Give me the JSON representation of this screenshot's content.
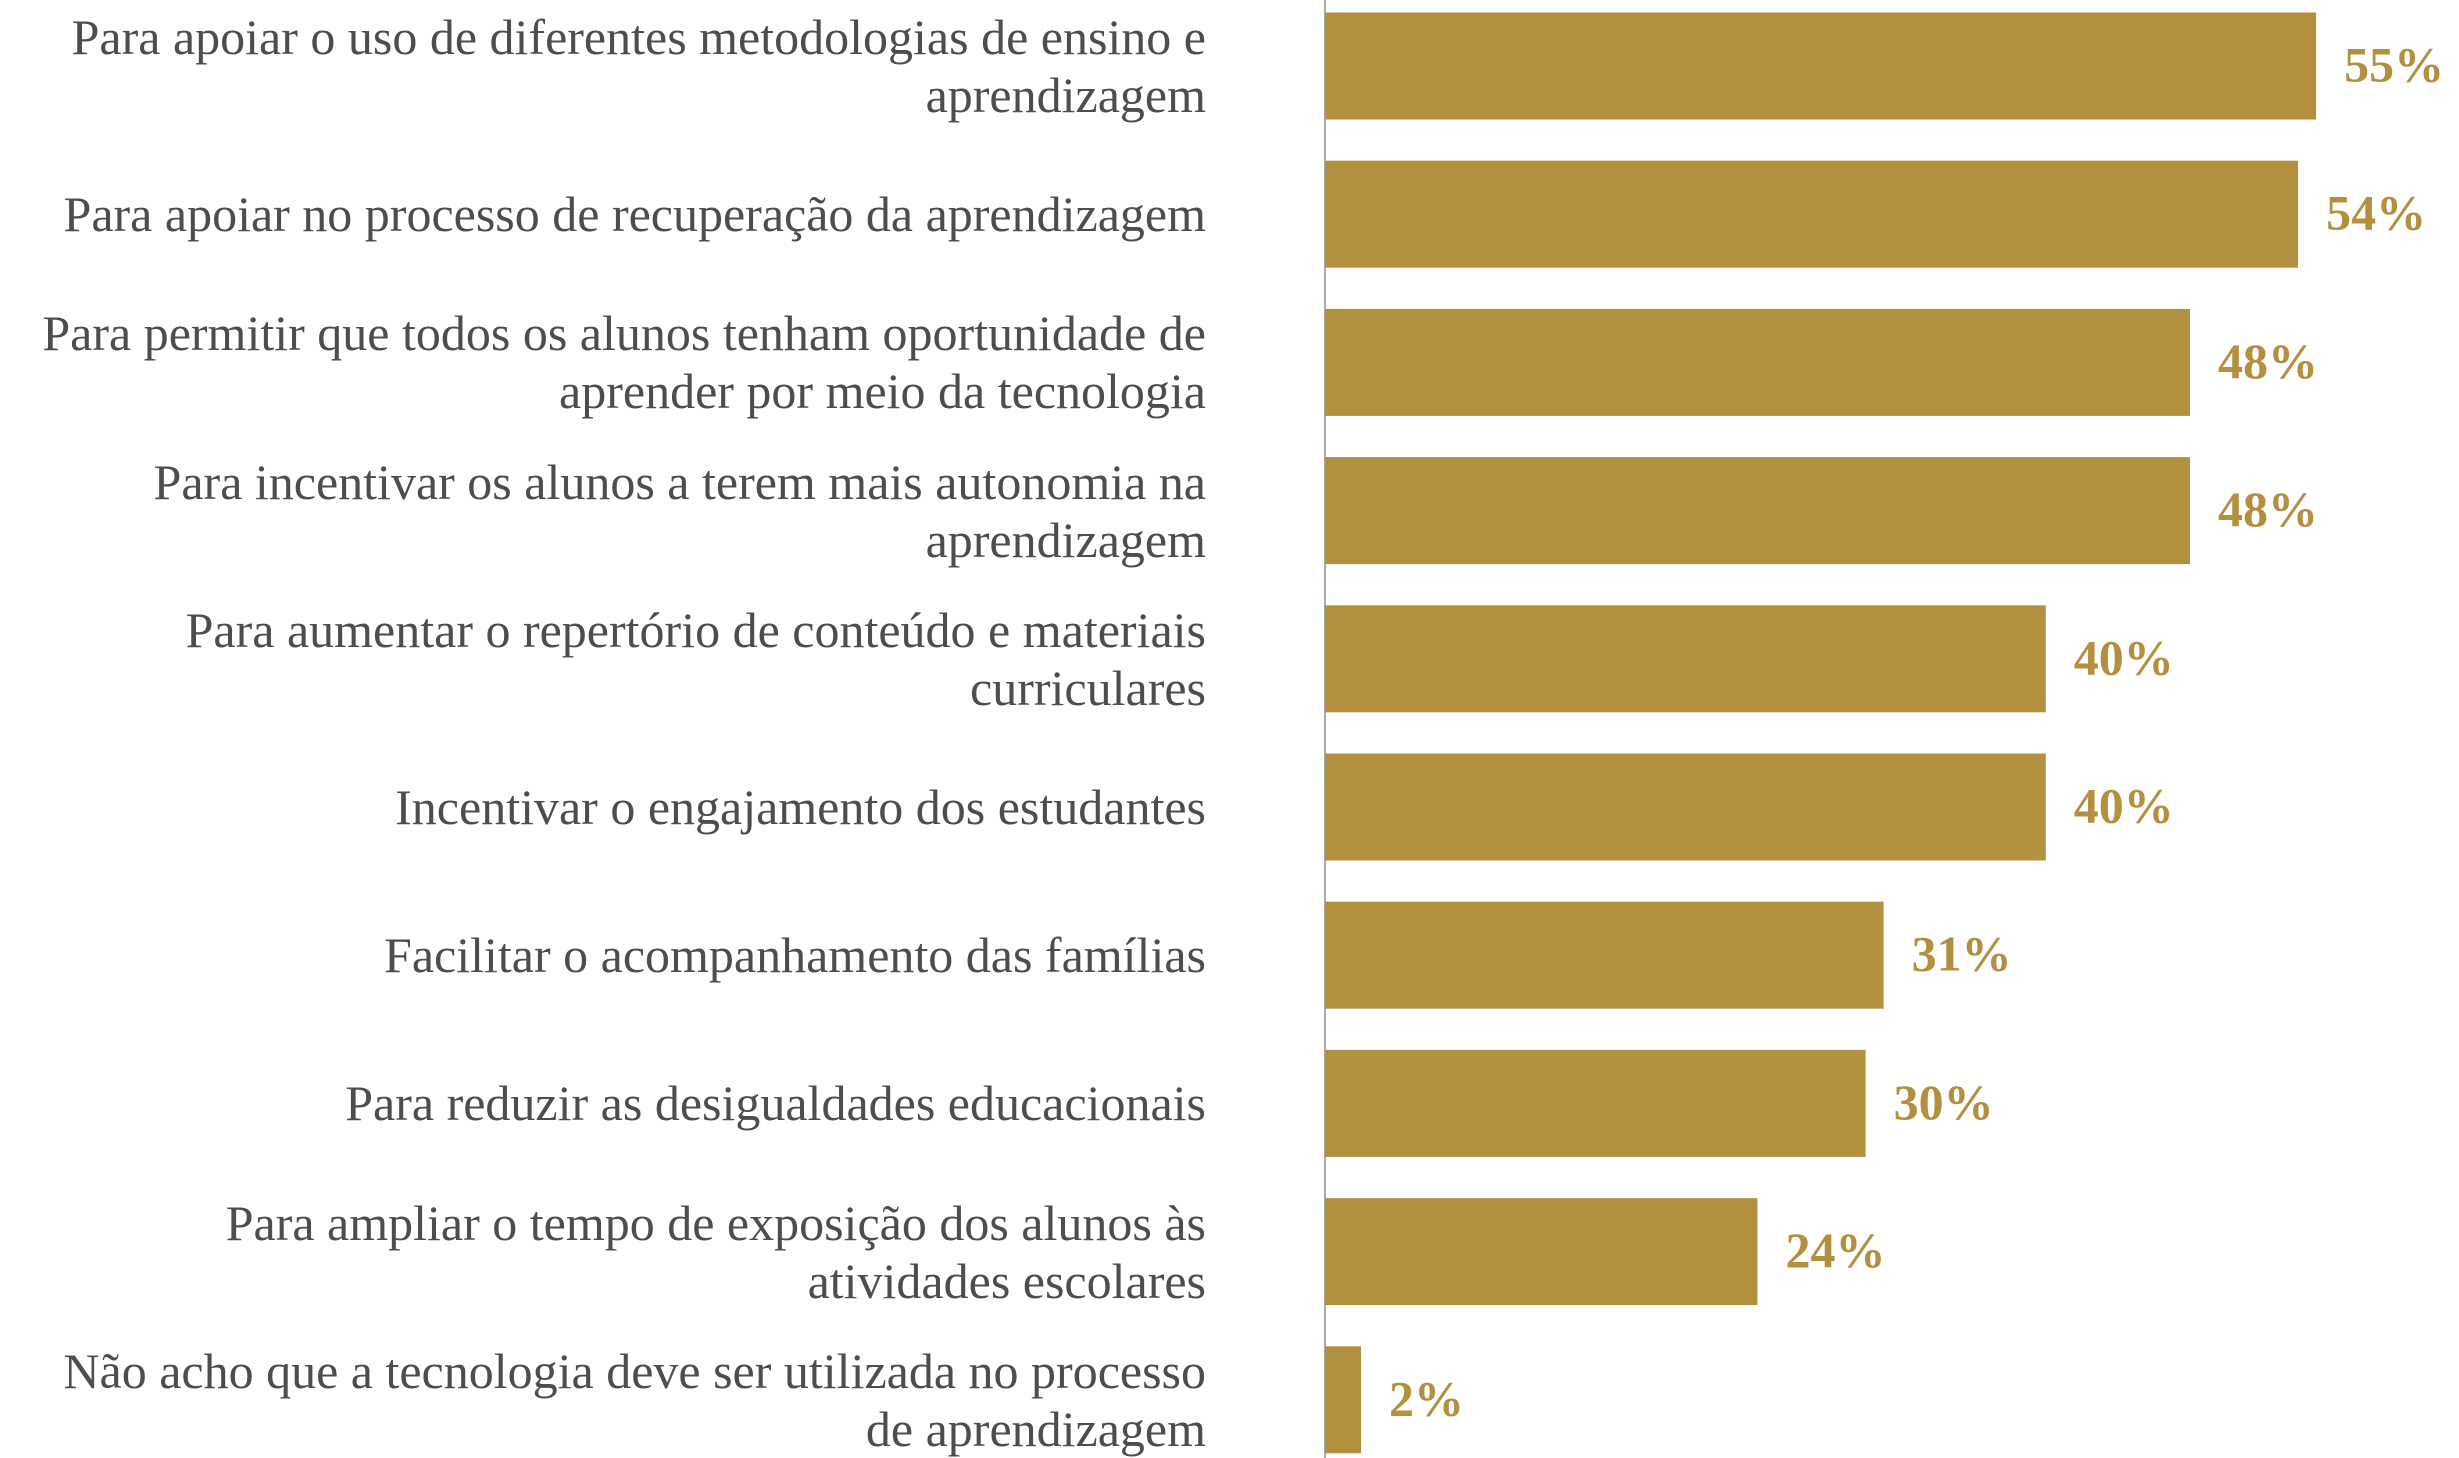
{
  "chart_data": {
    "type": "bar",
    "orientation": "horizontal",
    "categories": [
      "Para apoiar o uso de diferentes metodologias de ensino e aprendizagem",
      "Para apoiar no processo de recuperação da aprendizagem",
      "Para permitir que todos os alunos tenham oportunidade de aprender por meio da tecnologia",
      "Para incentivar os alunos a terem mais autonomia na aprendizagem",
      "Para aumentar o repertório de conteúdo e materiais curriculares",
      "Incentivar o engajamento dos estudantes",
      "Facilitar o acompanhamento das famílias",
      "Para reduzir as desigualdades educacionais",
      "Para ampliar o tempo de exposição dos alunos às atividades escolares",
      "Não acho que a tecnologia deve ser utilizada no processo de aprendizagem"
    ],
    "values": [
      55,
      54,
      48,
      48,
      40,
      40,
      31,
      30,
      24,
      2
    ],
    "value_labels": [
      "55%",
      "54%",
      "48%",
      "48%",
      "40%",
      "40%",
      "31%",
      "30%",
      "24%",
      "2%"
    ],
    "color": "#b38f40"
  }
}
